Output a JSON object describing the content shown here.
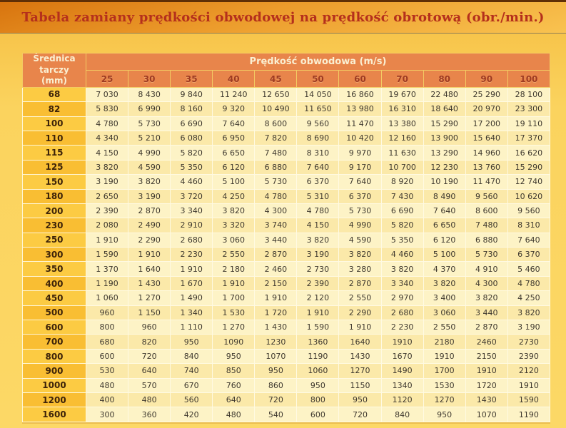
{
  "title": "Tabela zamiany prędkości obwodowej na prędkość obrotową (obr./min.)",
  "table": {
    "corner_header": {
      "line1": "Średnica tarczy",
      "line2": "(mm)"
    },
    "speed_header": "Prędkość obwodowa (m/s)",
    "speeds": [
      "25",
      "30",
      "35",
      "40",
      "45",
      "50",
      "60",
      "70",
      "80",
      "90",
      "100"
    ],
    "rows": [
      {
        "diameter": "68",
        "values": [
          "7 030",
          "8 430",
          "9 840",
          "11 240",
          "12 650",
          "14 050",
          "16 860",
          "19 670",
          "22 480",
          "25 290",
          "28 100"
        ]
      },
      {
        "diameter": "82",
        "values": [
          "5 830",
          "6 990",
          "8 160",
          "9 320",
          "10 490",
          "11 650",
          "13 980",
          "16 310",
          "18 640",
          "20 970",
          "23 300"
        ]
      },
      {
        "diameter": "100",
        "values": [
          "4 780",
          "5 730",
          "6 690",
          "7 640",
          "8 600",
          "9 560",
          "11 470",
          "13 380",
          "15 290",
          "17 200",
          "19 110"
        ]
      },
      {
        "diameter": "110",
        "values": [
          "4 340",
          "5 210",
          "6 080",
          "6 950",
          "7 820",
          "8 690",
          "10 420",
          "12 160",
          "13 900",
          "15 640",
          "17 370"
        ]
      },
      {
        "diameter": "115",
        "values": [
          "4 150",
          "4 990",
          "5 820",
          "6 650",
          "7 480",
          "8 310",
          "9 970",
          "11 630",
          "13 290",
          "14 960",
          "16 620"
        ]
      },
      {
        "diameter": "125",
        "values": [
          "3 820",
          "4 590",
          "5 350",
          "6 120",
          "6 880",
          "7 640",
          "9 170",
          "10 700",
          "12 230",
          "13 760",
          "15 290"
        ]
      },
      {
        "diameter": "150",
        "values": [
          "3 190",
          "3 820",
          "4 460",
          "5 100",
          "5 730",
          "6 370",
          "7 640",
          "8 920",
          "10 190",
          "11 470",
          "12 740"
        ]
      },
      {
        "diameter": "180",
        "values": [
          "2 650",
          "3 190",
          "3 720",
          "4 250",
          "4 780",
          "5 310",
          "6 370",
          "7 430",
          "8 490",
          "9 560",
          "10 620"
        ]
      },
      {
        "diameter": "200",
        "values": [
          "2 390",
          "2 870",
          "3 340",
          "3 820",
          "4 300",
          "4 780",
          "5 730",
          "6 690",
          "7 640",
          "8 600",
          "9 560"
        ]
      },
      {
        "diameter": "230",
        "values": [
          "2 080",
          "2 490",
          "2 910",
          "3 320",
          "3 740",
          "4 150",
          "4 990",
          "5 820",
          "6 650",
          "7 480",
          "8 310"
        ]
      },
      {
        "diameter": "250",
        "values": [
          "1 910",
          "2 290",
          "2 680",
          "3 060",
          "3 440",
          "3 820",
          "4 590",
          "5 350",
          "6 120",
          "6 880",
          "7 640"
        ]
      },
      {
        "diameter": "300",
        "values": [
          "1 590",
          "1 910",
          "2 230",
          "2 550",
          "2 870",
          "3 190",
          "3 820",
          "4 460",
          "5 100",
          "5 730",
          "6 370"
        ]
      },
      {
        "diameter": "350",
        "values": [
          "1 370",
          "1 640",
          "1 910",
          "2 180",
          "2 460",
          "2 730",
          "3 280",
          "3 820",
          "4 370",
          "4 910",
          "5 460"
        ]
      },
      {
        "diameter": "400",
        "values": [
          "1 190",
          "1 430",
          "1 670",
          "1 910",
          "2 150",
          "2 390",
          "2 870",
          "3 340",
          "3 820",
          "4 300",
          "4 780"
        ]
      },
      {
        "diameter": "450",
        "values": [
          "1 060",
          "1 270",
          "1 490",
          "1 700",
          "1 910",
          "2 120",
          "2 550",
          "2 970",
          "3 400",
          "3 820",
          "4 250"
        ]
      },
      {
        "diameter": "500",
        "values": [
          "960",
          "1 150",
          "1 340",
          "1 530",
          "1 720",
          "1 910",
          "2 290",
          "2 680",
          "3 060",
          "3 440",
          "3 820"
        ]
      },
      {
        "diameter": "600",
        "values": [
          "800",
          "960",
          "1 110",
          "1 270",
          "1 430",
          "1 590",
          "1 910",
          "2 230",
          "2 550",
          "2 870",
          "3 190"
        ]
      },
      {
        "diameter": "700",
        "values": [
          "680",
          "820",
          "950",
          "1090",
          "1230",
          "1360",
          "1640",
          "1910",
          "2180",
          "2460",
          "2730"
        ]
      },
      {
        "diameter": "800",
        "values": [
          "600",
          "720",
          "840",
          "950",
          "1070",
          "1190",
          "1430",
          "1670",
          "1910",
          "2150",
          "2390"
        ]
      },
      {
        "diameter": "900",
        "values": [
          "530",
          "640",
          "740",
          "850",
          "950",
          "1060",
          "1270",
          "1490",
          "1700",
          "1910",
          "2120"
        ]
      },
      {
        "diameter": "1000",
        "values": [
          "480",
          "570",
          "670",
          "760",
          "860",
          "950",
          "1150",
          "1340",
          "1530",
          "1720",
          "1910"
        ]
      },
      {
        "diameter": "1200",
        "values": [
          "400",
          "480",
          "560",
          "640",
          "720",
          "800",
          "950",
          "1120",
          "1270",
          "1430",
          "1590"
        ]
      },
      {
        "diameter": "1600",
        "values": [
          "300",
          "360",
          "420",
          "480",
          "540",
          "600",
          "720",
          "840",
          "950",
          "1070",
          "1190"
        ]
      }
    ]
  },
  "colors": {
    "title-text": "#B5301C",
    "header-orange": "#E8854B",
    "header-text": "#FAEFD2",
    "header-number-text": "#9E3A22",
    "diam-odd": "#FCCB43",
    "diam-even": "#F9BE33",
    "diam-text": "#3D2309",
    "row-odd": "#FDF3C6",
    "row-even": "#FBE9A9",
    "data-text": "#3E382E"
  }
}
